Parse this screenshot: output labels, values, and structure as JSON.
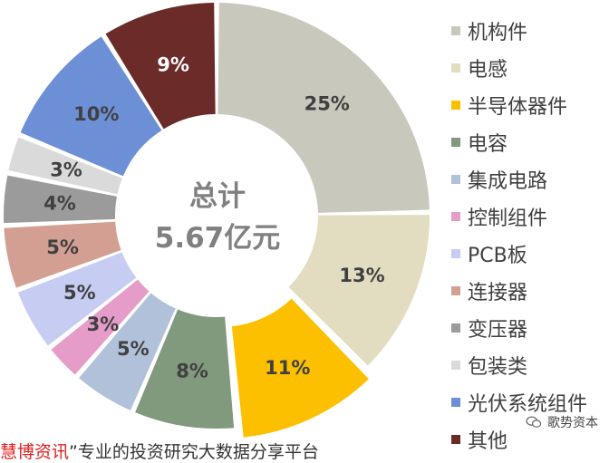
{
  "chart_data": {
    "type": "pie",
    "categories": [
      "机构件",
      "电感",
      "半导体器件",
      "电容",
      "集成电路",
      "控制组件",
      "PCB板",
      "连接器",
      "变压器",
      "包装类",
      "光伏系统组件",
      "其他"
    ],
    "values": [
      25,
      13,
      11,
      8,
      5,
      3,
      5,
      5,
      4,
      3,
      10,
      9
    ],
    "labels": [
      "25%",
      "13%",
      "11%",
      "8%",
      "5%",
      "3%",
      "5%",
      "5%",
      "4%",
      "3%",
      "10%",
      "9%"
    ],
    "colors": [
      "#c9c8bc",
      "#e2dcc0",
      "#fcc000",
      "#819a7e",
      "#b2c1da",
      "#e59cc9",
      "#c7ccf3",
      "#d49f93",
      "#9b9b9b",
      "#dadada",
      "#6d8fd5",
      "#6b2b29"
    ],
    "center_text": [
      "总计",
      "5.67亿元"
    ],
    "legend_position": "right"
  },
  "footer": {
    "red_text": "慧博资讯",
    "text": "”专业的投资研究大数据分享平台"
  },
  "watermark": {
    "text": "歌势资本",
    "icon": "wechat-icon"
  }
}
